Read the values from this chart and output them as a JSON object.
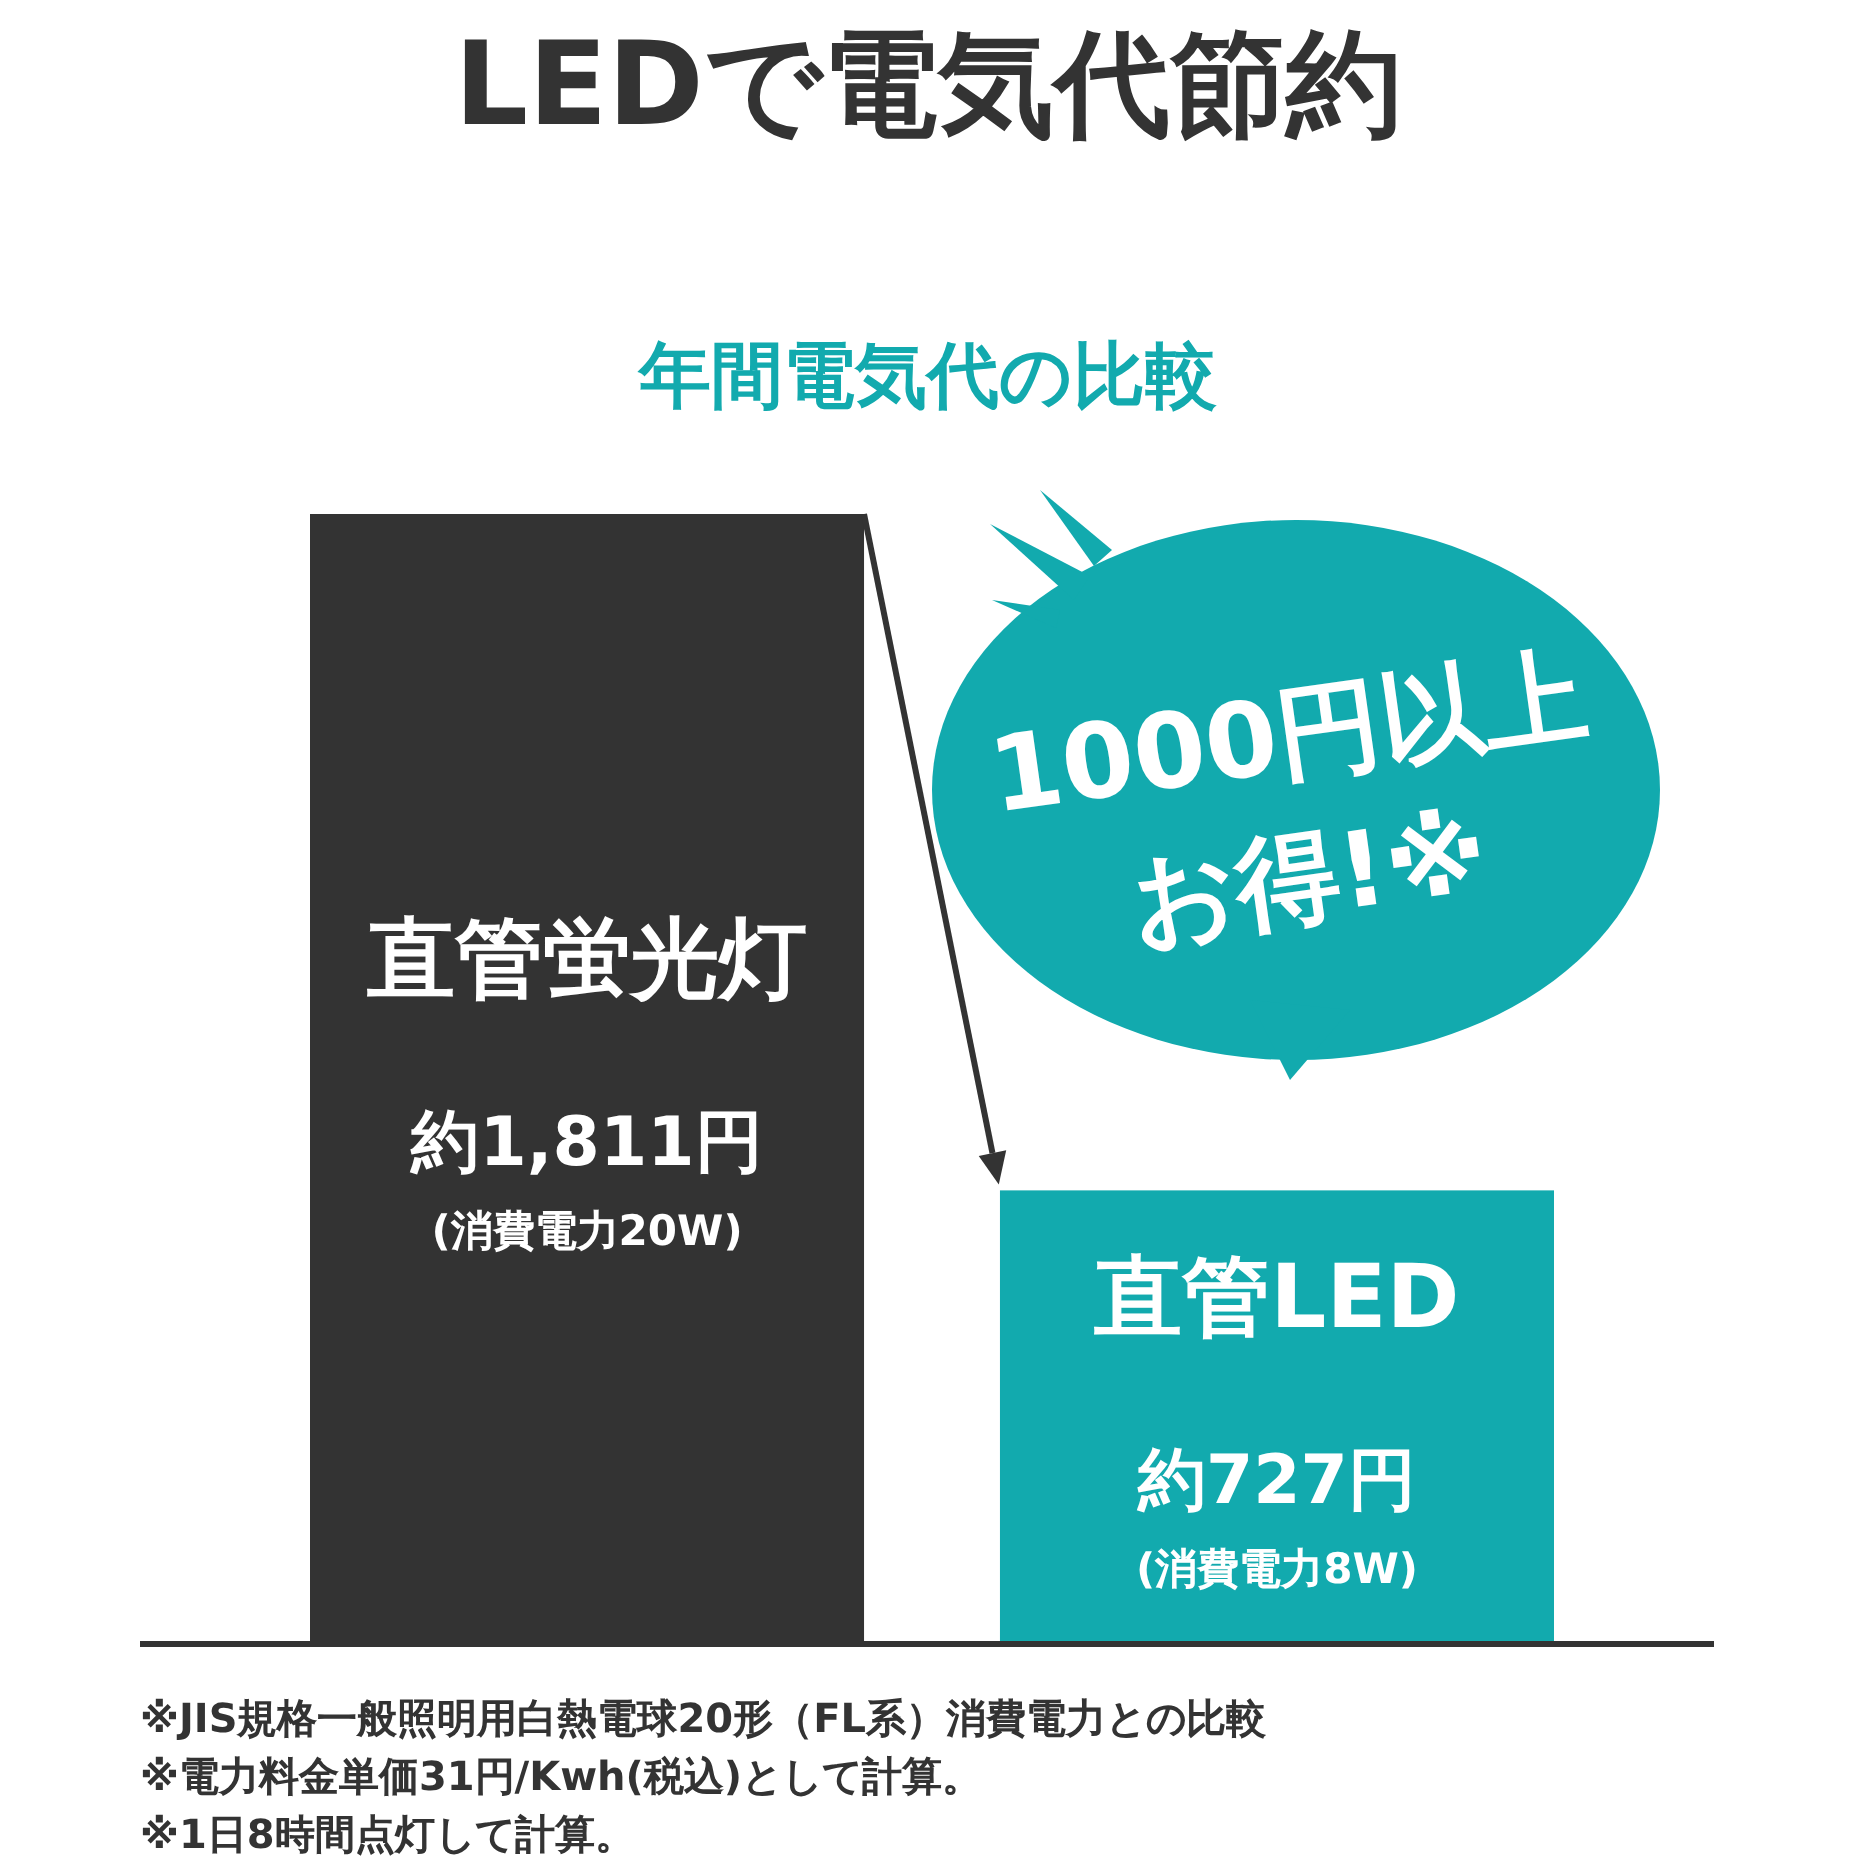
{
  "chart_data": {
    "type": "bar",
    "title": "LEDで電気代節約",
    "subtitle": "年間電気代の比較",
    "categories": [
      "直管蛍光灯",
      "直管LED"
    ],
    "values": [
      1811,
      727
    ],
    "colors": [
      "#333333",
      "#12aaae"
    ],
    "value_labels": [
      "約1,811円",
      "約727円"
    ],
    "annotations": [
      "(消費電力20W)",
      "(消費電力8W)",
      "1000円以上",
      "お得!※",
      "※JIS規格一般照明用白熱電球20形（FL系）消費電力との比較",
      "※電力料金単価31円/Kwh(税込)として計算。",
      "※1日8時間点灯して計算。"
    ]
  }
}
